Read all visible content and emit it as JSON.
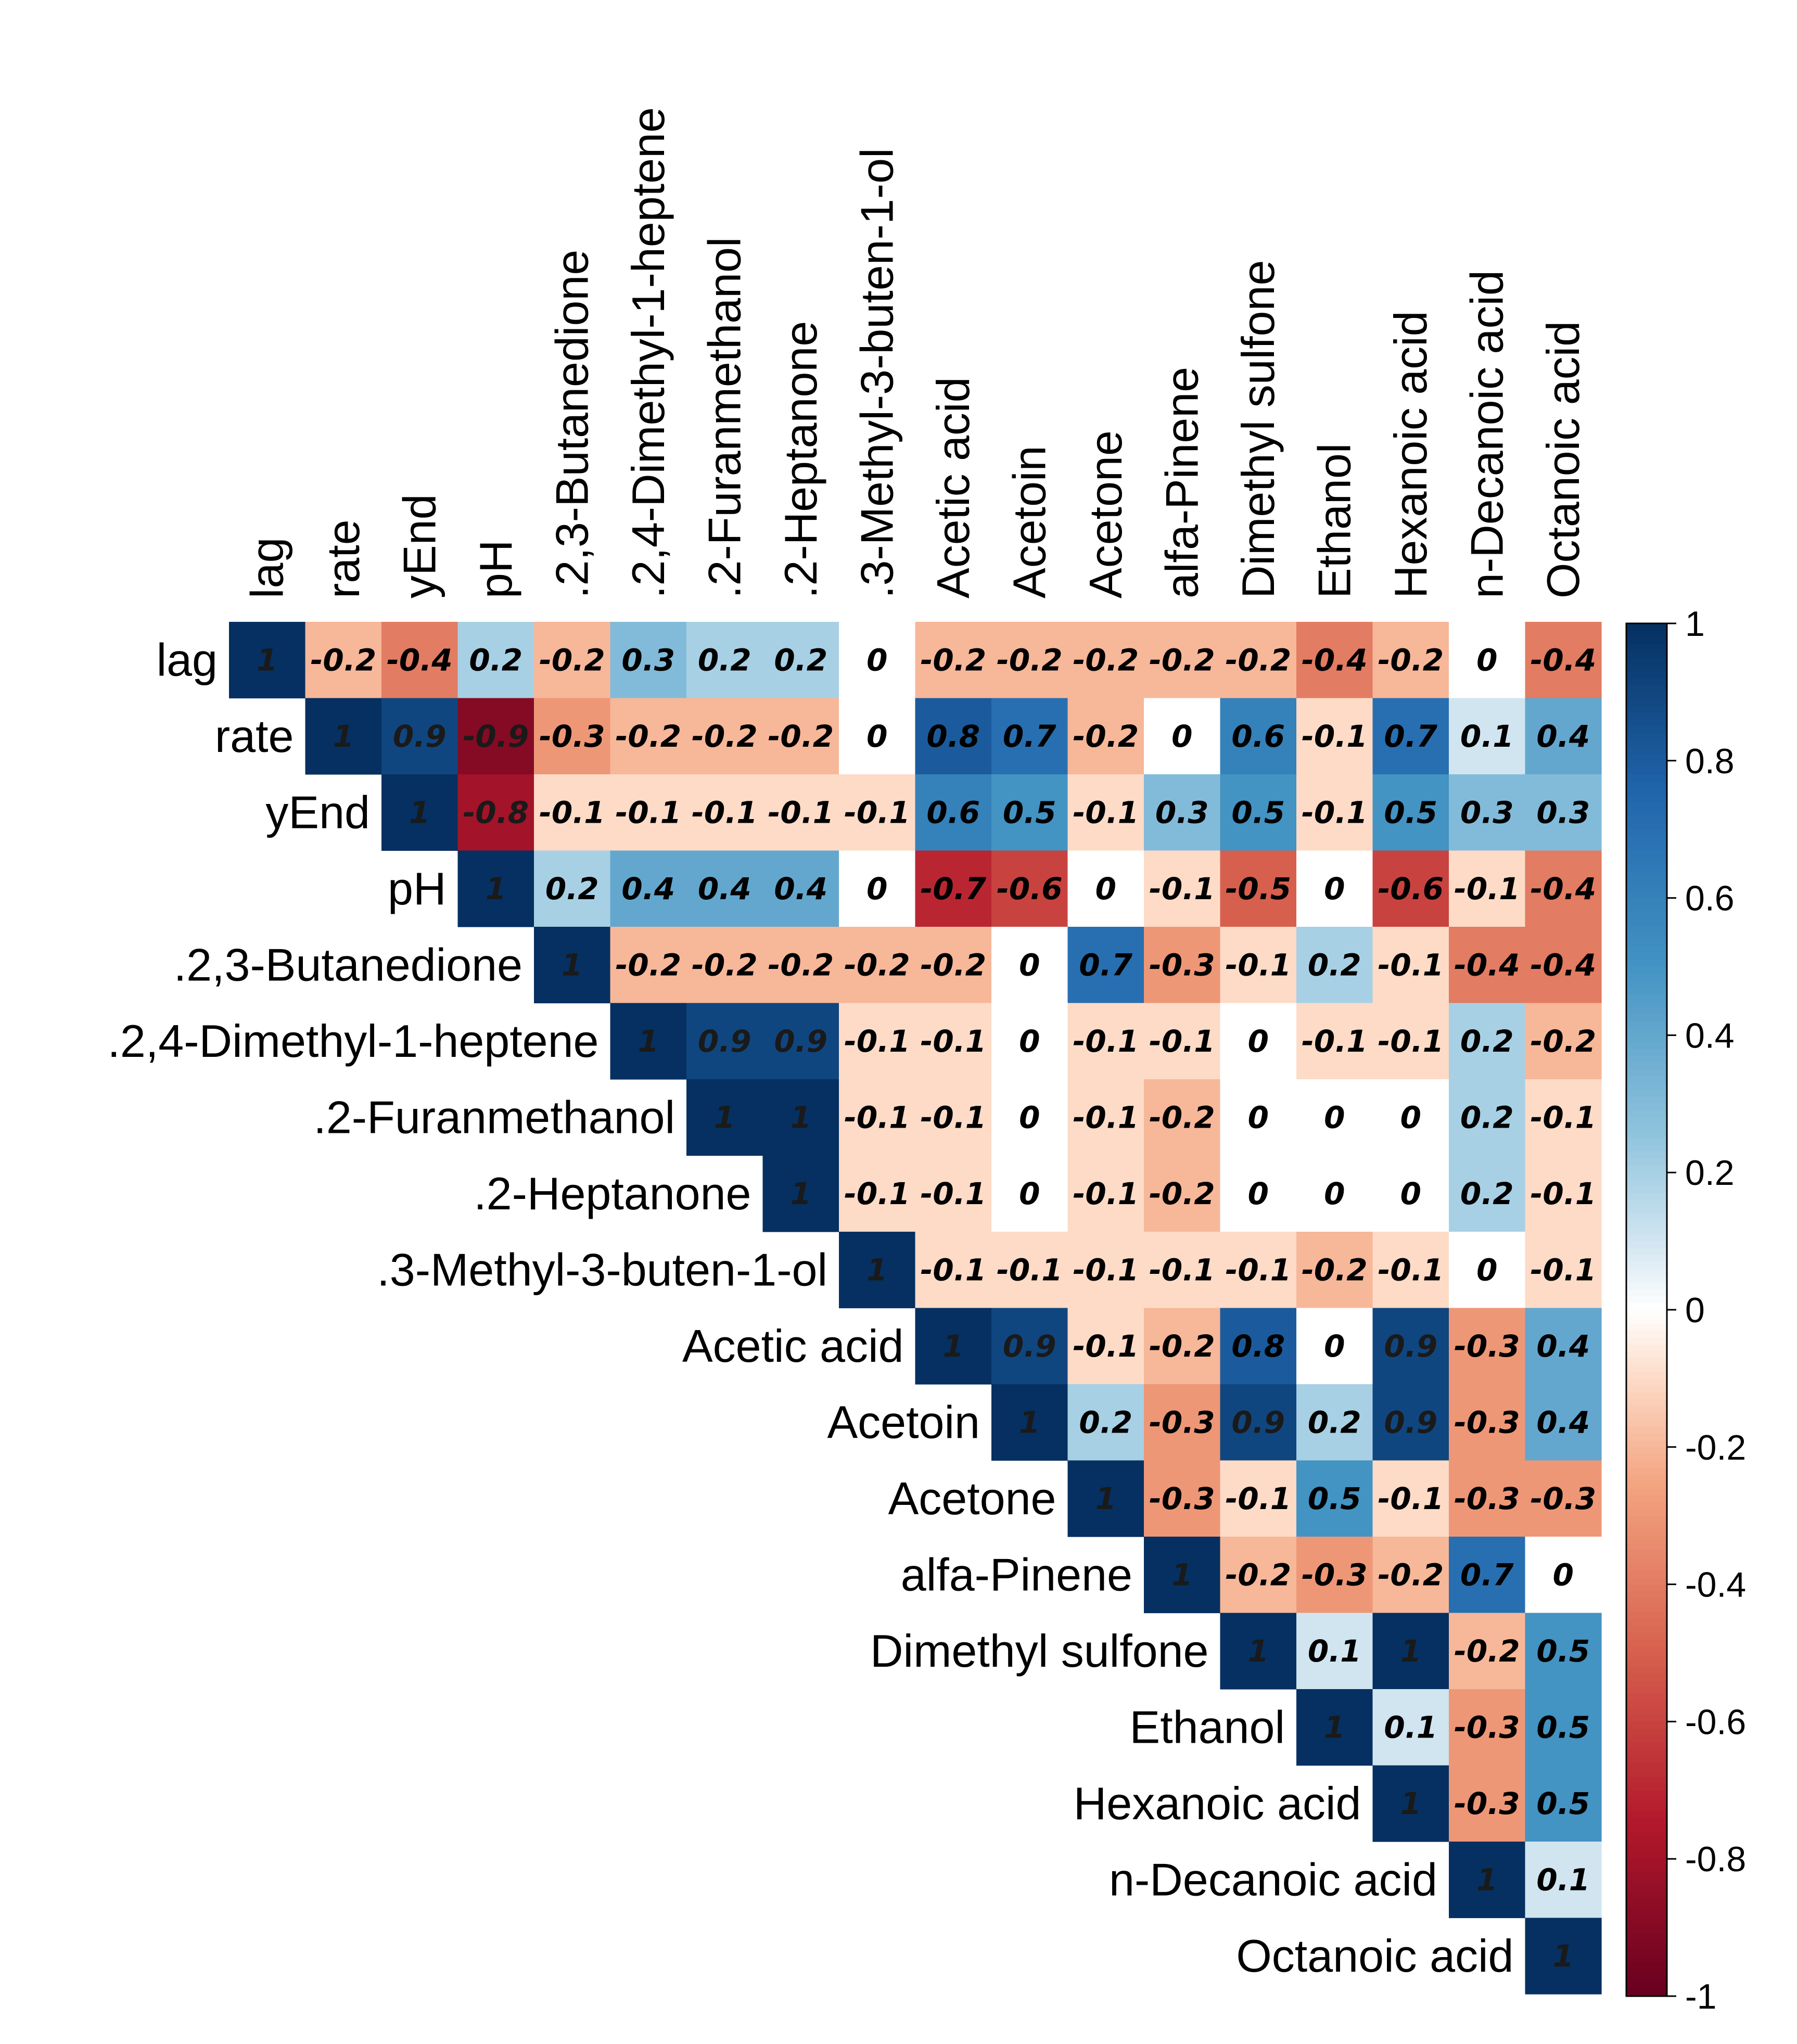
{
  "chart_data": {
    "type": "heatmap",
    "variant": "upper-triangular correlation matrix",
    "variables": [
      "lag",
      "rate",
      "yEnd",
      "pH",
      ".2,3-Butanedione",
      ".2,4-Dimethyl-1-heptene",
      ".2-Furanmethanol",
      ".2-Heptanone",
      ".3-Methyl-3-buten-1-ol",
      "Acetic acid",
      "Acetoin",
      "Acetone",
      "alfa-Pinene",
      "Dimethyl sulfone",
      "Ethanol",
      "Hexanoic acid",
      "n-Decanoic acid",
      "Octanoic acid"
    ],
    "matrix": [
      [
        1,
        -0.2,
        -0.4,
        0.2,
        -0.2,
        0.3,
        0.2,
        0.2,
        0,
        -0.2,
        -0.2,
        -0.2,
        -0.2,
        -0.2,
        -0.4,
        -0.2,
        0,
        -0.4
      ],
      [
        null,
        1,
        0.9,
        -0.9,
        -0.3,
        -0.2,
        -0.2,
        -0.2,
        0,
        0.8,
        0.7,
        -0.2,
        0,
        0.6,
        -0.1,
        0.7,
        0.1,
        0.4
      ],
      [
        null,
        null,
        1,
        -0.8,
        -0.1,
        -0.1,
        -0.1,
        -0.1,
        -0.1,
        0.6,
        0.5,
        -0.1,
        0.3,
        0.5,
        -0.1,
        0.5,
        0.3,
        0.3
      ],
      [
        null,
        null,
        null,
        1,
        0.2,
        0.4,
        0.4,
        0.4,
        0,
        -0.7,
        -0.6,
        0,
        -0.1,
        -0.5,
        0,
        -0.6,
        -0.1,
        -0.4
      ],
      [
        null,
        null,
        null,
        null,
        1,
        -0.2,
        -0.2,
        -0.2,
        -0.2,
        -0.2,
        0,
        0.7,
        -0.3,
        -0.1,
        0.2,
        -0.1,
        -0.4,
        -0.4
      ],
      [
        null,
        null,
        null,
        null,
        null,
        1,
        0.9,
        0.9,
        -0.1,
        -0.1,
        0,
        -0.1,
        -0.1,
        0,
        -0.1,
        -0.1,
        0.2,
        -0.2
      ],
      [
        null,
        null,
        null,
        null,
        null,
        null,
        1,
        1,
        -0.1,
        -0.1,
        0,
        -0.1,
        -0.2,
        0,
        0,
        0,
        0.2,
        -0.1
      ],
      [
        null,
        null,
        null,
        null,
        null,
        null,
        null,
        1,
        -0.1,
        -0.1,
        0,
        -0.1,
        -0.2,
        0,
        0,
        0,
        0.2,
        -0.1
      ],
      [
        null,
        null,
        null,
        null,
        null,
        null,
        null,
        null,
        1,
        -0.1,
        -0.1,
        -0.1,
        -0.1,
        -0.1,
        -0.2,
        -0.1,
        0,
        -0.1
      ],
      [
        null,
        null,
        null,
        null,
        null,
        null,
        null,
        null,
        null,
        1,
        0.9,
        -0.1,
        -0.2,
        0.8,
        0,
        0.9,
        -0.3,
        0.4
      ],
      [
        null,
        null,
        null,
        null,
        null,
        null,
        null,
        null,
        null,
        null,
        1,
        0.2,
        -0.3,
        0.9,
        0.2,
        0.9,
        -0.3,
        0.4
      ],
      [
        null,
        null,
        null,
        null,
        null,
        null,
        null,
        null,
        null,
        null,
        null,
        1,
        -0.3,
        -0.1,
        0.5,
        -0.1,
        -0.3,
        -0.3
      ],
      [
        null,
        null,
        null,
        null,
        null,
        null,
        null,
        null,
        null,
        null,
        null,
        null,
        1,
        -0.2,
        -0.3,
        -0.2,
        0.7,
        0
      ],
      [
        null,
        null,
        null,
        null,
        null,
        null,
        null,
        null,
        null,
        null,
        null,
        null,
        null,
        1,
        0.1,
        1,
        -0.2,
        0.5
      ],
      [
        null,
        null,
        null,
        null,
        null,
        null,
        null,
        null,
        null,
        null,
        null,
        null,
        null,
        null,
        1,
        0.1,
        -0.3,
        0.5
      ],
      [
        null,
        null,
        null,
        null,
        null,
        null,
        null,
        null,
        null,
        null,
        null,
        null,
        null,
        null,
        null,
        1,
        -0.3,
        0.5
      ],
      [
        null,
        null,
        null,
        null,
        null,
        null,
        null,
        null,
        null,
        null,
        null,
        null,
        null,
        null,
        null,
        null,
        1,
        0.1
      ],
      [
        null,
        null,
        null,
        null,
        null,
        null,
        null,
        null,
        null,
        null,
        null,
        null,
        null,
        null,
        null,
        null,
        null,
        1
      ]
    ],
    "color_scale": {
      "range": [
        -1,
        1
      ],
      "ticks": [
        1,
        0.8,
        0.6,
        0.4,
        0.2,
        0,
        -0.2,
        -0.4,
        -0.6,
        -0.8,
        -1
      ],
      "tick_labels": [
        "1",
        "0.8",
        "0.6",
        "0.4",
        "0.2",
        "0",
        "-0.2",
        "-0.4",
        "-0.6",
        "-0.8",
        "-1"
      ],
      "stops": [
        {
          "value": -1,
          "color": "#67001F"
        },
        {
          "value": -0.75,
          "color": "#B2182B"
        },
        {
          "value": -0.5,
          "color": "#D6604D"
        },
        {
          "value": -0.25,
          "color": "#F4A582"
        },
        {
          "value": -0.1,
          "color": "#FDDBC7"
        },
        {
          "value": 0,
          "color": "#FFFFFF"
        },
        {
          "value": 0.1,
          "color": "#D1E5F0"
        },
        {
          "value": 0.25,
          "color": "#92C5DE"
        },
        {
          "value": 0.5,
          "color": "#4393C3"
        },
        {
          "value": 0.75,
          "color": "#2166AC"
        },
        {
          "value": 1,
          "color": "#053061"
        }
      ],
      "legend_position": "right"
    },
    "title": "",
    "xlabel": "",
    "ylabel": ""
  }
}
